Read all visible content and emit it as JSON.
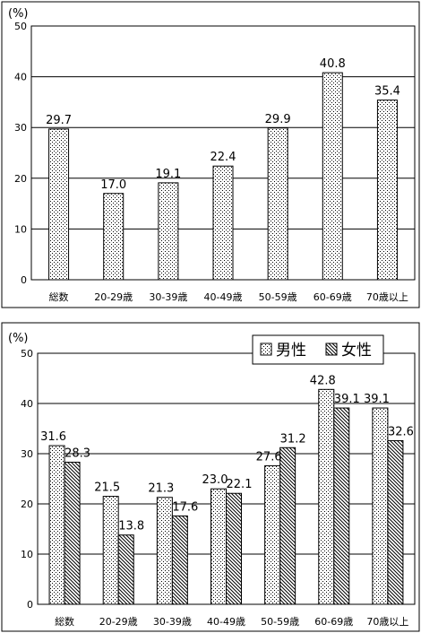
{
  "chart_data": [
    {
      "type": "bar",
      "unit_label": "(%)",
      "categories": [
        "総数",
        "20-29歳",
        "30-39歳",
        "40-49歳",
        "50-59歳",
        "60-69歳",
        "70歳以上"
      ],
      "values": [
        29.7,
        17.0,
        19.1,
        22.4,
        29.9,
        40.8,
        35.4
      ],
      "value_labels": [
        "29.7",
        "17.0",
        "19.1",
        "22.4",
        "29.9",
        "40.8",
        "35.4"
      ],
      "y_ticks": [
        "0",
        "10",
        "20",
        "30",
        "40",
        "50"
      ],
      "ylim": [
        0,
        50
      ],
      "grid": true,
      "bar_fill": "dotted"
    },
    {
      "type": "bar",
      "unit_label": "(%)",
      "categories": [
        "総数",
        "20-29歳",
        "30-39歳",
        "40-49歳",
        "50-59歳",
        "60-69歳",
        "70歳以上"
      ],
      "series": [
        {
          "name": "男性",
          "values": [
            31.6,
            21.5,
            21.3,
            23.0,
            27.6,
            42.8,
            39.1
          ],
          "value_labels": [
            "31.6",
            "21.5",
            "21.3",
            "23.0",
            "27.6",
            "42.8",
            "39.1"
          ],
          "fill": "dotted"
        },
        {
          "name": "女性",
          "values": [
            28.3,
            13.8,
            17.6,
            22.1,
            31.2,
            39.1,
            32.6
          ],
          "value_labels": [
            "28.3",
            "13.8",
            "17.6",
            "22.1",
            "31.2",
            "39.1",
            "32.6"
          ],
          "fill": "hatched"
        }
      ],
      "y_ticks": [
        "0",
        "10",
        "20",
        "30",
        "40",
        "50"
      ],
      "ylim": [
        0,
        50
      ],
      "grid": true,
      "legend_position": "top-right"
    }
  ]
}
